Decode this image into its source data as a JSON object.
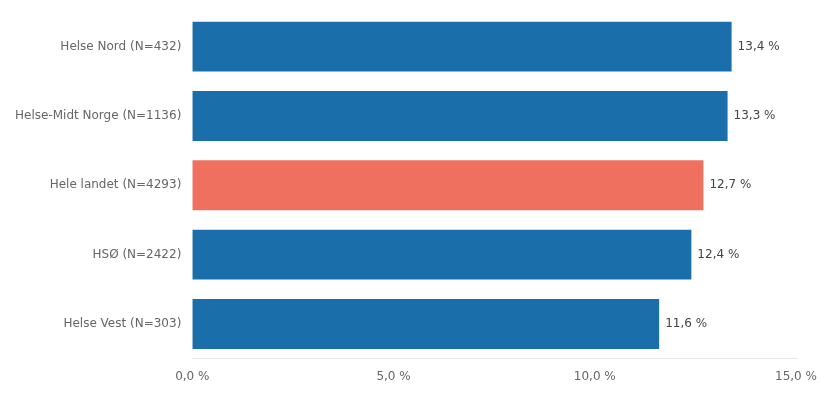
{
  "chart_data": {
    "type": "bar",
    "orientation": "horizontal",
    "categories": [
      "Helse Nord (N=432)",
      "Helse-Midt Norge (N=1136)",
      "Hele landet (N=4293)",
      "HSØ (N=2422)",
      "Helse Vest (N=303)"
    ],
    "values": [
      13.4,
      13.3,
      12.7,
      12.4,
      11.6
    ],
    "value_labels": [
      "13,4 %",
      "13,3 %",
      "12,7 %",
      "12,4 %",
      "11,6 %"
    ],
    "colors": [
      "#1a6faa",
      "#1a6faa",
      "#f07060",
      "#1a6faa",
      "#1a6faa"
    ],
    "xlim": [
      0,
      15.0
    ],
    "xticks": [
      {
        "value": 0,
        "label": "0,0 %"
      },
      {
        "value": 5.0,
        "label": "5,0 %"
      },
      {
        "value": 10.0,
        "label": "10,0 %"
      },
      {
        "value": 15.0,
        "label": "15,0 %"
      }
    ],
    "grid": false,
    "data_labels": true
  }
}
